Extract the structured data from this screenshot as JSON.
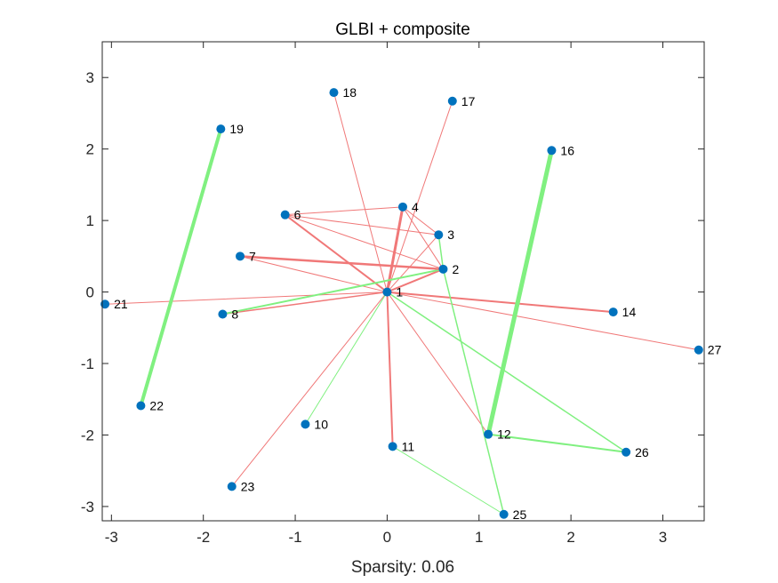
{
  "chart_data": {
    "type": "scatter",
    "title": "GLBI + composite",
    "xlabel": "Sparsity: 0.06",
    "ylabel": "",
    "xlim": [
      -3.1,
      3.45
    ],
    "ylim": [
      -3.2,
      3.5
    ],
    "xticks": [
      -3,
      -2,
      -1,
      0,
      1,
      2,
      3
    ],
    "yticks": [
      -3,
      -2,
      -1,
      0,
      1,
      2,
      3
    ],
    "grid": false,
    "nodes": [
      {
        "id": "1",
        "x": 0.0,
        "y": 0.0
      },
      {
        "id": "2",
        "x": 0.61,
        "y": 0.32
      },
      {
        "id": "3",
        "x": 0.56,
        "y": 0.8
      },
      {
        "id": "4",
        "x": 0.17,
        "y": 1.19
      },
      {
        "id": "6",
        "x": -1.11,
        "y": 1.08
      },
      {
        "id": "7",
        "x": -1.6,
        "y": 0.5
      },
      {
        "id": "8",
        "x": -1.79,
        "y": -0.31
      },
      {
        "id": "10",
        "x": -0.89,
        "y": -1.85
      },
      {
        "id": "11",
        "x": 0.06,
        "y": -2.16
      },
      {
        "id": "12",
        "x": 1.1,
        "y": -1.99
      },
      {
        "id": "14",
        "x": 2.46,
        "y": -0.28
      },
      {
        "id": "16",
        "x": 1.79,
        "y": 1.98
      },
      {
        "id": "17",
        "x": 0.71,
        "y": 2.67
      },
      {
        "id": "18",
        "x": -0.58,
        "y": 2.79
      },
      {
        "id": "19",
        "x": -1.81,
        "y": 2.28
      },
      {
        "id": "21",
        "x": -3.07,
        "y": -0.17
      },
      {
        "id": "22",
        "x": -2.68,
        "y": -1.59
      },
      {
        "id": "23",
        "x": -1.69,
        "y": -2.72
      },
      {
        "id": "25",
        "x": 1.27,
        "y": -3.11
      },
      {
        "id": "26",
        "x": 2.6,
        "y": -2.24
      },
      {
        "id": "27",
        "x": 3.39,
        "y": -0.81
      }
    ],
    "edges": [
      {
        "source": "1",
        "target": "18",
        "sign": "negative",
        "weight": 1
      },
      {
        "source": "1",
        "target": "17",
        "sign": "negative",
        "weight": 1
      },
      {
        "source": "1",
        "target": "4",
        "sign": "negative",
        "weight": 3
      },
      {
        "source": "1",
        "target": "3",
        "sign": "negative",
        "weight": 1
      },
      {
        "source": "1",
        "target": "2",
        "sign": "negative",
        "weight": 2
      },
      {
        "source": "1",
        "target": "6",
        "sign": "negative",
        "weight": 2
      },
      {
        "source": "1",
        "target": "7",
        "sign": "negative",
        "weight": 1
      },
      {
        "source": "1",
        "target": "8",
        "sign": "negative",
        "weight": 1.5
      },
      {
        "source": "1",
        "target": "21",
        "sign": "negative",
        "weight": 1
      },
      {
        "source": "1",
        "target": "14",
        "sign": "negative",
        "weight": 2
      },
      {
        "source": "1",
        "target": "27",
        "sign": "negative",
        "weight": 1
      },
      {
        "source": "1",
        "target": "11",
        "sign": "negative",
        "weight": 2
      },
      {
        "source": "1",
        "target": "23",
        "sign": "negative",
        "weight": 1
      },
      {
        "source": "1",
        "target": "12",
        "sign": "negative",
        "weight": 1
      },
      {
        "source": "1",
        "target": "10",
        "sign": "positive",
        "weight": 1
      },
      {
        "source": "1",
        "target": "26",
        "sign": "positive",
        "weight": 1.5
      },
      {
        "source": "8",
        "target": "2",
        "sign": "positive",
        "weight": 2
      },
      {
        "source": "6",
        "target": "4",
        "sign": "negative",
        "weight": 1
      },
      {
        "source": "6",
        "target": "3",
        "sign": "negative",
        "weight": 1
      },
      {
        "source": "6",
        "target": "2",
        "sign": "negative",
        "weight": 1
      },
      {
        "source": "4",
        "target": "3",
        "sign": "negative",
        "weight": 1
      },
      {
        "source": "4",
        "target": "2",
        "sign": "negative",
        "weight": 1
      },
      {
        "source": "7",
        "target": "2",
        "sign": "negative",
        "weight": 2.5
      },
      {
        "source": "3",
        "target": "2",
        "sign": "positive",
        "weight": 1.5
      },
      {
        "source": "2",
        "target": "25",
        "sign": "positive",
        "weight": 1.5
      },
      {
        "source": "19",
        "target": "22",
        "sign": "positive",
        "weight": 4
      },
      {
        "source": "16",
        "target": "12",
        "sign": "positive",
        "weight": 5
      },
      {
        "source": "12",
        "target": "26",
        "sign": "positive",
        "weight": 2
      },
      {
        "source": "11",
        "target": "25",
        "sign": "positive",
        "weight": 1
      }
    ]
  },
  "colors": {
    "positive_edge": "#80f080",
    "negative_edge": "#f07878",
    "node": "#0072bd",
    "axis": "#262626",
    "background": "#ffffff"
  }
}
